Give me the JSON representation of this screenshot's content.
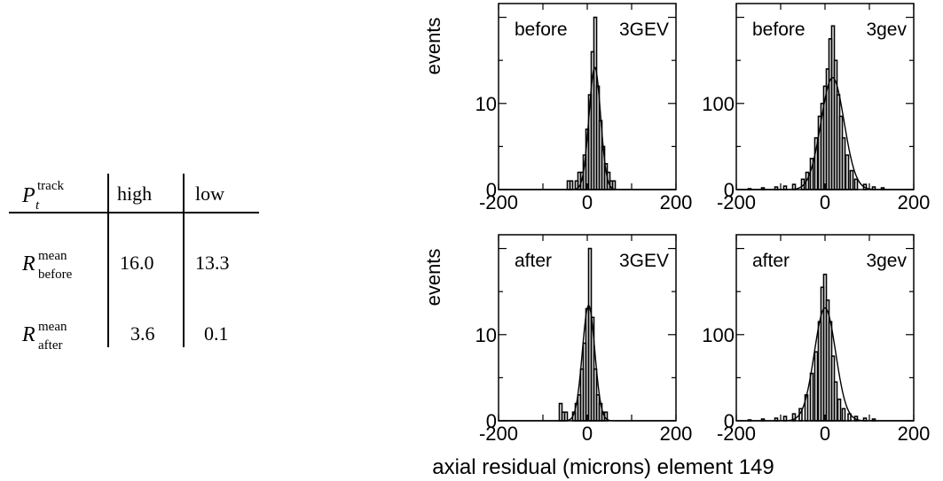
{
  "table": {
    "col_header_symbol": "P",
    "col_header_sub": "t",
    "col_header_sup": "track",
    "columns": [
      "high",
      "low"
    ],
    "rows": [
      {
        "symbol": "R",
        "sup": "mean",
        "sub": "before",
        "values": [
          "16.0",
          "13.3"
        ]
      },
      {
        "symbol": "R",
        "sup": "mean",
        "sub": "after",
        "values": [
          "3.6",
          "0.1"
        ]
      }
    ]
  },
  "figure": {
    "xlabel": "axial residual (microns) element 149"
  },
  "chart_data": [
    {
      "type": "histogram",
      "label_left": "before",
      "label_right": "3GEV",
      "ylabel": "events",
      "xlim": [
        -200,
        200
      ],
      "ylim": [
        0,
        21.6
      ],
      "yticks": [
        0,
        10
      ],
      "xticks": [
        -200,
        0,
        200
      ],
      "bin_width": 6,
      "bins": [
        {
          "x": -48,
          "y": 0
        },
        {
          "x": -42,
          "y": 1
        },
        {
          "x": -36,
          "y": 1
        },
        {
          "x": -30,
          "y": 0
        },
        {
          "x": -24,
          "y": 1
        },
        {
          "x": -18,
          "y": 2
        },
        {
          "x": -12,
          "y": 2
        },
        {
          "x": -6,
          "y": 4
        },
        {
          "x": 0,
          "y": 7
        },
        {
          "x": 6,
          "y": 11
        },
        {
          "x": 12,
          "y": 16
        },
        {
          "x": 18,
          "y": 20
        },
        {
          "x": 24,
          "y": 12
        },
        {
          "x": 30,
          "y": 8
        },
        {
          "x": 36,
          "y": 5
        },
        {
          "x": 42,
          "y": 3
        },
        {
          "x": 48,
          "y": 2
        },
        {
          "x": 54,
          "y": 1
        },
        {
          "x": 60,
          "y": 1
        }
      ],
      "fit": {
        "type": "gaussian",
        "amplitude": 14.2,
        "mean": 17,
        "sigma": 13
      }
    },
    {
      "type": "histogram",
      "label_left": "before",
      "label_right": "3gev",
      "ylabel": "",
      "xlim": [
        -200,
        200
      ],
      "ylim": [
        0,
        216
      ],
      "yticks": [
        0,
        100
      ],
      "xticks": [
        -200,
        0,
        200
      ],
      "bin_width": 6,
      "bins": [
        {
          "x": -200,
          "y": 0
        },
        {
          "x": -170,
          "y": 1
        },
        {
          "x": -140,
          "y": 2
        },
        {
          "x": -110,
          "y": 3
        },
        {
          "x": -90,
          "y": 4
        },
        {
          "x": -70,
          "y": 6
        },
        {
          "x": -50,
          "y": 12
        },
        {
          "x": -40,
          "y": 20
        },
        {
          "x": -30,
          "y": 36
        },
        {
          "x": -20,
          "y": 60
        },
        {
          "x": -12,
          "y": 85
        },
        {
          "x": -6,
          "y": 100
        },
        {
          "x": 0,
          "y": 120
        },
        {
          "x": 6,
          "y": 140
        },
        {
          "x": 12,
          "y": 175
        },
        {
          "x": 18,
          "y": 190
        },
        {
          "x": 24,
          "y": 150
        },
        {
          "x": 30,
          "y": 110
        },
        {
          "x": 36,
          "y": 85
        },
        {
          "x": 42,
          "y": 60
        },
        {
          "x": 50,
          "y": 40
        },
        {
          "x": 60,
          "y": 22
        },
        {
          "x": 70,
          "y": 12
        },
        {
          "x": 90,
          "y": 6
        },
        {
          "x": 110,
          "y": 3
        },
        {
          "x": 130,
          "y": 2
        },
        {
          "x": 150,
          "y": 0
        }
      ],
      "fit": {
        "type": "gaussian",
        "amplitude": 130,
        "mean": 17,
        "sigma": 26
      }
    },
    {
      "type": "histogram",
      "label_left": "after",
      "label_right": "3GEV",
      "ylabel": "events",
      "xlim": [
        -200,
        200
      ],
      "ylim": [
        0,
        21.6
      ],
      "yticks": [
        0,
        10
      ],
      "xticks": [
        -200,
        0,
        200
      ],
      "bin_width": 6,
      "bins": [
        {
          "x": -66,
          "y": 0
        },
        {
          "x": -60,
          "y": 2
        },
        {
          "x": -54,
          "y": 1
        },
        {
          "x": -48,
          "y": 1
        },
        {
          "x": -42,
          "y": 0
        },
        {
          "x": -30,
          "y": 1
        },
        {
          "x": -24,
          "y": 2
        },
        {
          "x": -18,
          "y": 3
        },
        {
          "x": -12,
          "y": 6
        },
        {
          "x": -6,
          "y": 9
        },
        {
          "x": 0,
          "y": 13
        },
        {
          "x": 6,
          "y": 20
        },
        {
          "x": 12,
          "y": 12
        },
        {
          "x": 18,
          "y": 6
        },
        {
          "x": 24,
          "y": 3
        },
        {
          "x": 30,
          "y": 2
        },
        {
          "x": 36,
          "y": 1
        },
        {
          "x": 42,
          "y": 1
        }
      ],
      "fit": {
        "type": "gaussian",
        "amplitude": 13.4,
        "mean": 3,
        "sigma": 14
      }
    },
    {
      "type": "histogram",
      "label_left": "after",
      "label_right": "3gev",
      "ylabel": "",
      "xlim": [
        -200,
        200
      ],
      "ylim": [
        0,
        216
      ],
      "yticks": [
        0,
        100
      ],
      "xticks": [
        -200,
        0,
        200
      ],
      "bin_width": 6,
      "bins": [
        {
          "x": -200,
          "y": 0
        },
        {
          "x": -170,
          "y": 1
        },
        {
          "x": -140,
          "y": 2
        },
        {
          "x": -110,
          "y": 3
        },
        {
          "x": -90,
          "y": 5
        },
        {
          "x": -70,
          "y": 8
        },
        {
          "x": -55,
          "y": 14
        },
        {
          "x": -42,
          "y": 30
        },
        {
          "x": -30,
          "y": 55
        },
        {
          "x": -20,
          "y": 80
        },
        {
          "x": -12,
          "y": 115
        },
        {
          "x": -6,
          "y": 155
        },
        {
          "x": 0,
          "y": 170
        },
        {
          "x": 6,
          "y": 140
        },
        {
          "x": 12,
          "y": 115
        },
        {
          "x": 18,
          "y": 75
        },
        {
          "x": 24,
          "y": 45
        },
        {
          "x": 32,
          "y": 25
        },
        {
          "x": 42,
          "y": 14
        },
        {
          "x": 55,
          "y": 8
        },
        {
          "x": 70,
          "y": 5
        },
        {
          "x": 90,
          "y": 3
        },
        {
          "x": 110,
          "y": 2
        },
        {
          "x": 130,
          "y": 0
        }
      ],
      "fit": {
        "type": "gaussian",
        "amplitude": 131,
        "mean": 0,
        "sigma": 24
      }
    }
  ]
}
